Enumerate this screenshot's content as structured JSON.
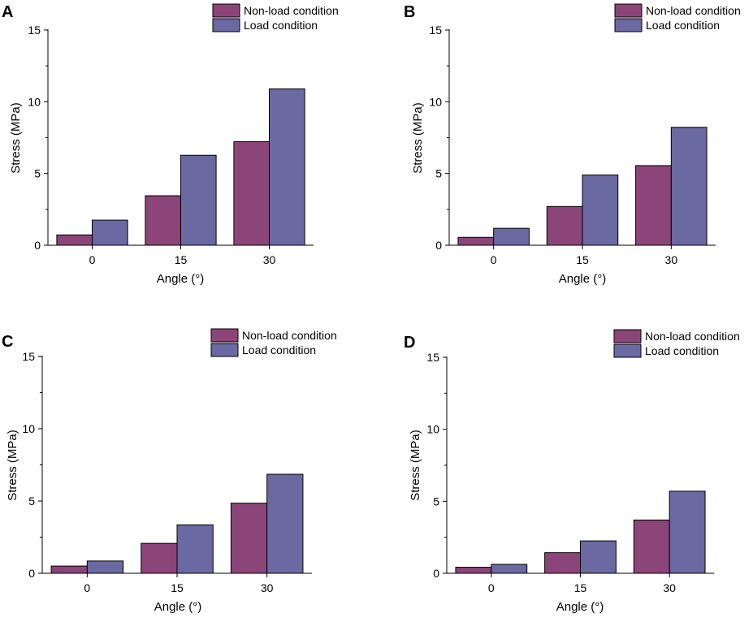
{
  "colors": {
    "non_load": "#8B4579",
    "load": "#6A69A2"
  },
  "chart_data": [
    {
      "panel": "A",
      "type": "bar",
      "categories": [
        "0",
        "15",
        "30"
      ],
      "series": [
        {
          "name": "Non-load condition",
          "values": [
            0.72,
            3.45,
            7.22
          ]
        },
        {
          "name": "Load condition",
          "values": [
            1.75,
            6.27,
            10.9
          ]
        }
      ],
      "xlabel": "Angle (°)",
      "ylabel": "Stress (MPa)",
      "ylim": [
        0,
        15
      ],
      "yticks": [
        "0",
        "5",
        "10",
        "15"
      ],
      "legend_position": "top-right"
    },
    {
      "panel": "B",
      "type": "bar",
      "categories": [
        "0",
        "15",
        "30"
      ],
      "series": [
        {
          "name": "Non-load condition",
          "values": [
            0.55,
            2.7,
            5.55
          ]
        },
        {
          "name": "Load condition",
          "values": [
            1.18,
            4.9,
            8.22
          ]
        }
      ],
      "xlabel": "Angle (°)",
      "ylabel": "Stress (MPa)",
      "ylim": [
        0,
        15
      ],
      "yticks": [
        "0",
        "5",
        "10",
        "15"
      ],
      "legend_position": "top-right"
    },
    {
      "panel": "C",
      "type": "bar",
      "categories": [
        "0",
        "15",
        "30"
      ],
      "series": [
        {
          "name": "Non-load condition",
          "values": [
            0.5,
            2.07,
            4.85
          ]
        },
        {
          "name": "Load condition",
          "values": [
            0.85,
            3.35,
            6.85
          ]
        }
      ],
      "xlabel": "Angle (°)",
      "ylabel": "Stress (MPa)",
      "ylim": [
        0,
        15
      ],
      "yticks": [
        "0",
        "5",
        "10",
        "15"
      ],
      "legend_position": "top-right"
    },
    {
      "panel": "D",
      "type": "bar",
      "categories": [
        "0",
        "15",
        "30"
      ],
      "series": [
        {
          "name": "Non-load condition",
          "values": [
            0.42,
            1.43,
            3.7
          ]
        },
        {
          "name": "Load condition",
          "values": [
            0.62,
            2.25,
            5.7
          ]
        }
      ],
      "xlabel": "Angle (°)",
      "ylabel": "Stress (MPa)",
      "ylim": [
        0,
        15
      ],
      "yticks": [
        "0",
        "5",
        "10",
        "15"
      ],
      "legend_position": "top-right"
    }
  ]
}
